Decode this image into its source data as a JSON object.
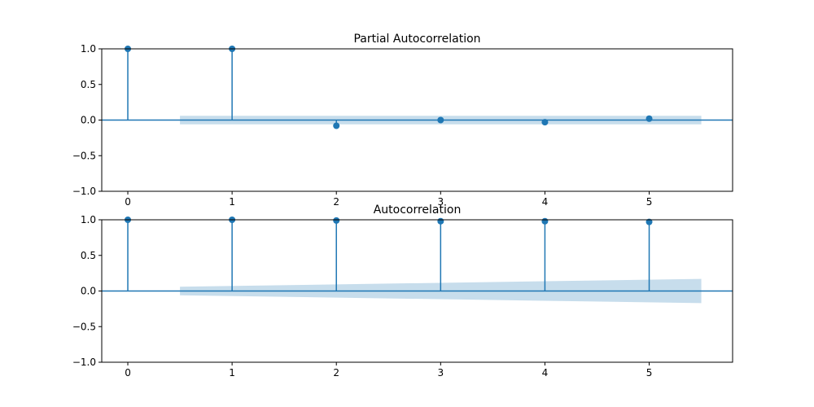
{
  "chart_data": [
    {
      "type": "stem",
      "title": "Partial Autocorrelation",
      "xlabel": "",
      "ylabel": "",
      "x": [
        0,
        1,
        2,
        3,
        4,
        5
      ],
      "values": [
        1.0,
        1.0,
        -0.08,
        0.0,
        -0.03,
        0.02
      ],
      "xlim": [
        -0.25,
        5.8
      ],
      "ylim": [
        -1.0,
        1.0
      ],
      "xticks": [
        "0",
        "1",
        "2",
        "3",
        "4",
        "5"
      ],
      "yticks": [
        "1.0",
        "0.5",
        "0.0",
        "−0.5",
        "−1.0"
      ],
      "confidence_band": {
        "x_range": [
          0.5,
          5.5
        ],
        "upper": [
          0.06,
          0.06
        ],
        "lower": [
          -0.06,
          -0.06
        ]
      },
      "grid": false,
      "colors": {
        "stem": "#1f77b4",
        "band": "#1f77b4"
      }
    },
    {
      "type": "stem",
      "title": "Autocorrelation",
      "xlabel": "",
      "ylabel": "",
      "x": [
        0,
        1,
        2,
        3,
        4,
        5
      ],
      "values": [
        1.0,
        1.0,
        0.99,
        0.98,
        0.98,
        0.97
      ],
      "xlim": [
        -0.25,
        5.8
      ],
      "ylim": [
        -1.0,
        1.0
      ],
      "xticks": [
        "0",
        "1",
        "2",
        "3",
        "4",
        "5"
      ],
      "yticks": [
        "1.0",
        "0.5",
        "0.0",
        "−0.5",
        "−1.0"
      ],
      "confidence_band": {
        "x_range": [
          0.5,
          5.5
        ],
        "upper": [
          0.06,
          0.17
        ],
        "lower": [
          -0.06,
          -0.17
        ]
      },
      "grid": false,
      "colors": {
        "stem": "#1f77b4",
        "band": "#1f77b4"
      }
    }
  ]
}
